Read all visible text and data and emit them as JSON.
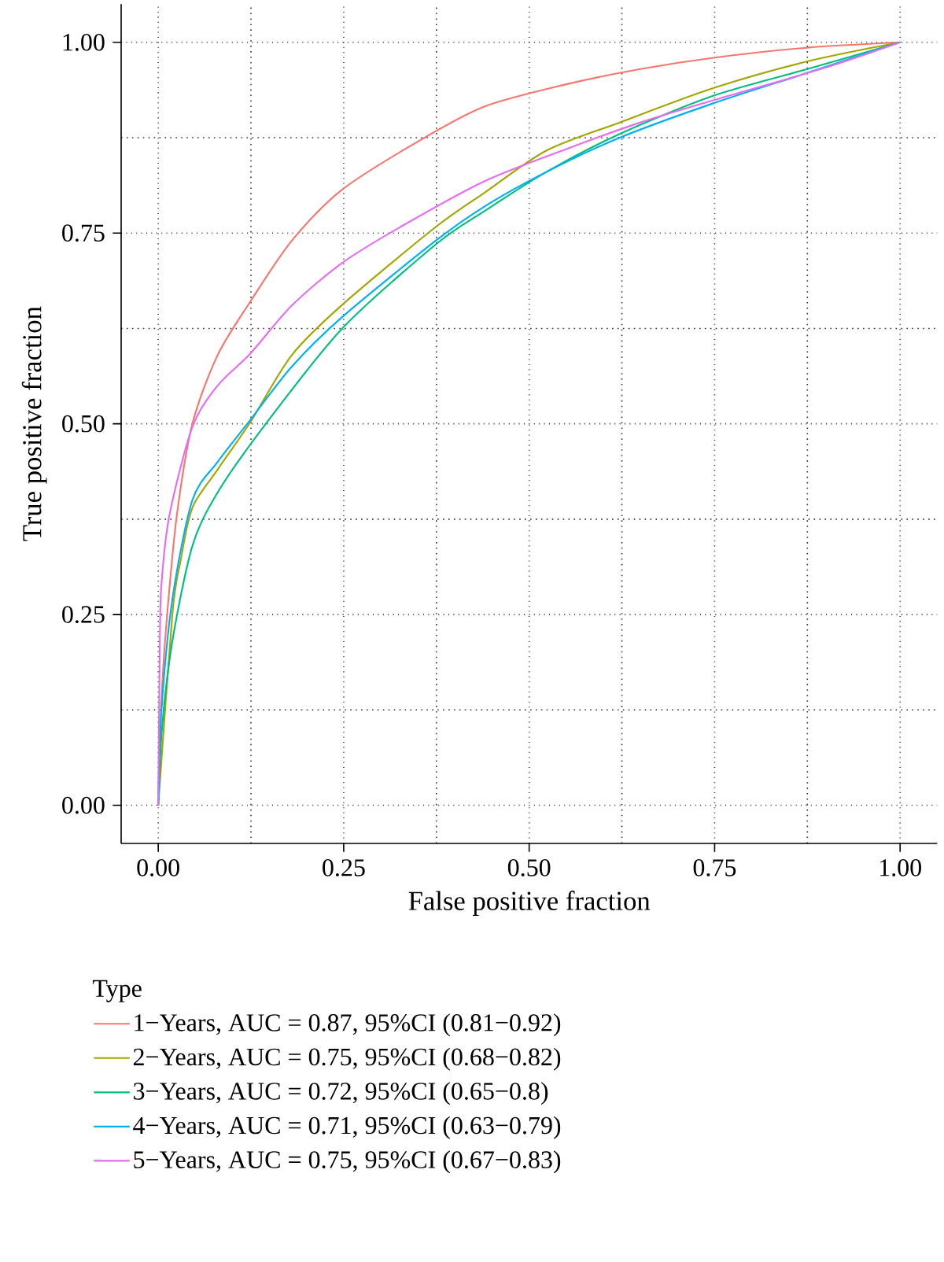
{
  "chart_data": {
    "type": "line",
    "xlabel": "False positive fraction",
    "ylabel": "True positive fraction",
    "legend_title": "Type",
    "legend": "bottom",
    "grid": true,
    "line_style": "solid",
    "marker": "none",
    "xlim": [
      -0.05,
      1.05
    ],
    "ylim": [
      -0.05,
      1.05
    ],
    "xticks": [
      {
        "value": 0,
        "label": "0.00"
      },
      {
        "value": 0.25,
        "label": "0.25"
      },
      {
        "value": 0.5,
        "label": "0.50"
      },
      {
        "value": 0.75,
        "label": "0.75"
      },
      {
        "value": 1,
        "label": "1.00"
      }
    ],
    "yticks": [
      {
        "value": 0,
        "label": "0.00"
      },
      {
        "value": 0.25,
        "label": "0.25"
      },
      {
        "value": 0.5,
        "label": "0.50"
      },
      {
        "value": 0.75,
        "label": "0.75"
      },
      {
        "value": 1,
        "label": "1.00"
      }
    ],
    "series": [
      {
        "name": "1−Years, AUC = 0.87, 95%CI (0.81−0.92)",
        "color": "#f8766d",
        "x": [
          0,
          0.005,
          0.012,
          0.025,
          0.046,
          0.08,
          0.124,
          0.18,
          0.248,
          0.35,
          0.44,
          0.55,
          0.65,
          0.75,
          0.875,
          1
        ],
        "values": [
          0,
          0.15,
          0.25,
          0.38,
          0.5,
          0.59,
          0.66,
          0.74,
          0.807,
          0.87,
          0.916,
          0.945,
          0.965,
          0.98,
          0.993,
          1
        ]
      },
      {
        "name": "2−Years, AUC = 0.75, 95%CI (0.68−0.82)",
        "color": "#a3a500",
        "x": [
          0,
          0.019,
          0.03,
          0.046,
          0.08,
          0.124,
          0.18,
          0.248,
          0.374,
          0.44,
          0.523,
          0.622,
          0.748,
          0.875,
          1
        ],
        "values": [
          0,
          0.25,
          0.32,
          0.39,
          0.44,
          0.502,
          0.59,
          0.656,
          0.758,
          0.803,
          0.858,
          0.895,
          0.94,
          0.975,
          1
        ]
      },
      {
        "name": "3−Years, AUC = 0.72, 95%CI (0.65−0.8)",
        "color": "#00bf7d",
        "x": [
          0,
          0.005,
          0.019,
          0.046,
          0.08,
          0.145,
          0.248,
          0.374,
          0.44,
          0.523,
          0.622,
          0.748,
          0.875,
          1
        ],
        "values": [
          0,
          0.1,
          0.215,
          0.34,
          0.41,
          0.5,
          0.625,
          0.735,
          0.779,
          0.83,
          0.88,
          0.93,
          0.965,
          1
        ]
      },
      {
        "name": "4−Years, AUC = 0.71, 95%CI (0.63−0.79)",
        "color": "#00b0f6",
        "x": [
          0,
          0.004,
          0.019,
          0.046,
          0.08,
          0.124,
          0.18,
          0.248,
          0.374,
          0.44,
          0.523,
          0.622,
          0.748,
          0.875,
          1
        ],
        "values": [
          0,
          0.12,
          0.27,
          0.4,
          0.45,
          0.505,
          0.575,
          0.64,
          0.74,
          0.785,
          0.83,
          0.875,
          0.92,
          0.96,
          1
        ]
      },
      {
        "name": "5−Years, AUC = 0.75, 95%CI (0.67−0.83)",
        "color": "#e76bf3",
        "x": [
          0,
          0.002,
          0.004,
          0.015,
          0.046,
          0.08,
          0.124,
          0.18,
          0.248,
          0.33,
          0.44,
          0.55,
          0.65,
          0.748,
          0.9,
          1
        ],
        "values": [
          0,
          0.2,
          0.285,
          0.38,
          0.496,
          0.55,
          0.592,
          0.655,
          0.711,
          0.76,
          0.818,
          0.86,
          0.895,
          0.924,
          0.967,
          1
        ]
      }
    ]
  }
}
